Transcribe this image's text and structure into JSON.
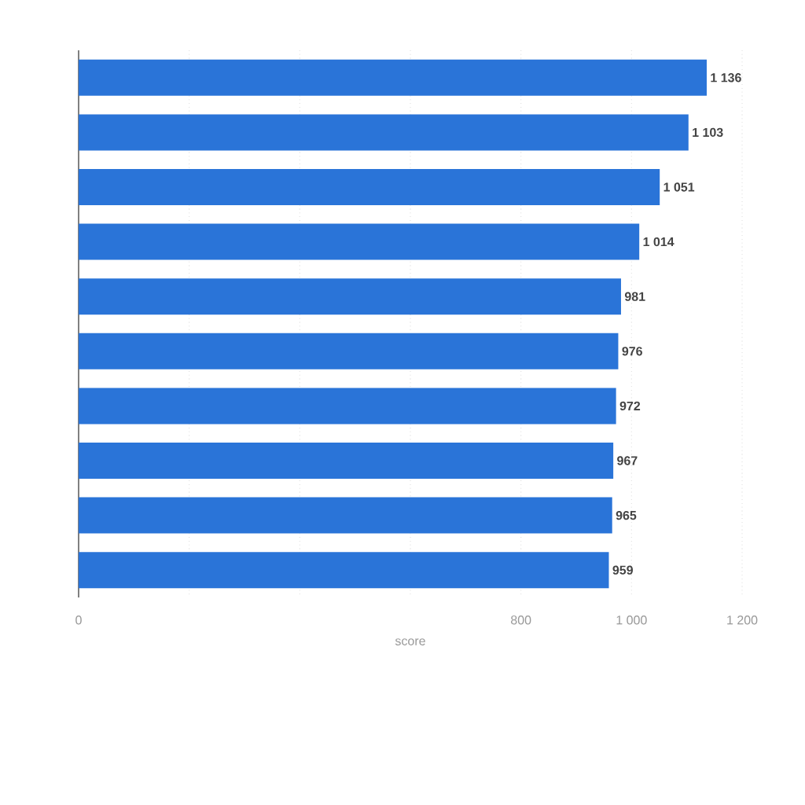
{
  "chart_data": {
    "type": "bar",
    "orientation": "horizontal",
    "categories": [
      null,
      null,
      null,
      null,
      null,
      null,
      null,
      null,
      null,
      null
    ],
    "values": [
      1136,
      1103,
      1051,
      1014,
      981,
      976,
      972,
      967,
      965,
      959
    ],
    "value_labels": [
      "1 136",
      "1 103",
      "1 051",
      "1 014",
      "981",
      "976",
      "972",
      "967",
      "965",
      "959"
    ],
    "color": "#2a74d8",
    "xlim": [
      0,
      1200
    ],
    "xticks": [
      0,
      {
        "value": 200,
        "label": null
      },
      {
        "value": 400,
        "label": null
      },
      {
        "value": 600,
        "label": null
      },
      800,
      {
        "value": 1000,
        "label": "1 000"
      },
      {
        "value": 1200,
        "label": "1 200"
      }
    ],
    "xlabel": "score",
    "grid": "x"
  }
}
